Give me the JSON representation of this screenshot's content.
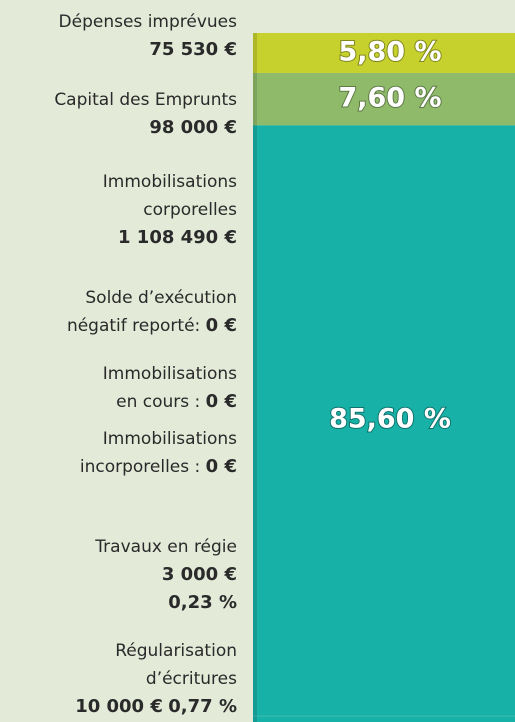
{
  "chart_data": {
    "type": "stacked_bar",
    "labels": [
      {
        "lines": [
          "Dépenses imprévues"
        ],
        "amount": "75 530 €"
      },
      {
        "lines": [
          "Capital des Emprunts"
        ],
        "amount": "98 000 €"
      },
      {
        "lines": [
          "Immobilisations",
          "corporelles"
        ],
        "amount": "1 108 490 €"
      },
      {
        "lines": [
          "Solde d’exécution",
          "négatif reporté:"
        ],
        "amount": "0 €"
      },
      {
        "lines": [
          "Immobilisations",
          "en cours :"
        ],
        "amount": "0 €"
      },
      {
        "lines": [
          "Immobilisations",
          "incorporelles :"
        ],
        "amount": "0 €"
      },
      {
        "lines": [
          "Travaux en régie"
        ],
        "amount": "3 000 €"
      },
      {
        "lines": [
          "Régularisation",
          "d’écritures"
        ],
        "amount": "10 000 €"
      }
    ],
    "segments": [
      {
        "value": 5.8,
        "value_label": "5,80 %",
        "color": "#c6d12d"
      },
      {
        "value": 7.6,
        "value_label": "7,60 %",
        "color": "#8fba6a"
      },
      {
        "value": 85.6,
        "value_label": "85,60 %",
        "color": "#17b1a7"
      },
      {
        "value": 0.23,
        "value_label": "0,23 %",
        "color": "#17b1a7"
      },
      {
        "value": 0.77,
        "value_label": "0,77 %",
        "color": "#17b1a7"
      }
    ],
    "ylim": [
      0,
      100
    ]
  }
}
